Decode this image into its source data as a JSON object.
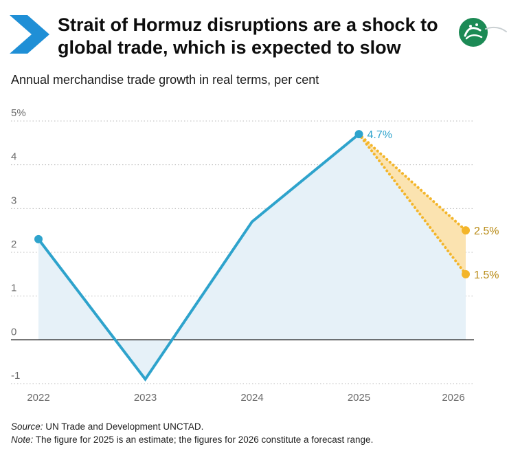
{
  "header": {
    "title": "Strait of Hormuz disruptions are a shock to global trade, which is expected to slow",
    "subtitle": "Annual merchandise trade growth in real terms, per cent",
    "logo_icon": "brand-logo-icon",
    "chevron_icon": "chevron-right-icon"
  },
  "colors": {
    "line": "#2ea3cc",
    "area": "#e6f1f8",
    "forecast": "#f3b52a",
    "forecast_fill": "#fbe3b0",
    "grid": "#b8b8b8",
    "zero_line": "#111111",
    "chevron": "#1f8fd6",
    "logo": "#1c8a55"
  },
  "chart_data": {
    "type": "line",
    "x": [
      "2022",
      "2023",
      "2024",
      "2025",
      "2026"
    ],
    "series": [
      {
        "values": [
          2.3,
          -0.9,
          2.7,
          4.7,
          null
        ]
      }
    ],
    "forecast": {
      "high": 2.5,
      "low": 1.5
    },
    "data_labels": {
      "2025": "4.7%",
      "high": "2.5%",
      "low": "1.5%"
    },
    "y_tick_labels": [
      "-1",
      "0",
      "1",
      "2",
      "3",
      "4",
      "5%"
    ],
    "y_ticks": [
      -1,
      0,
      1,
      2,
      3,
      4,
      5
    ],
    "ylim": [
      -1,
      5
    ],
    "grid": true,
    "area_fill": true
  },
  "footer": {
    "source_label": "Source:",
    "source_text": " UN Trade and Development UNCTAD.",
    "note_label": "Note:",
    "note_text": " The figure for 2025 is an estimate; the figures for 2026 constitute a forecast range."
  }
}
